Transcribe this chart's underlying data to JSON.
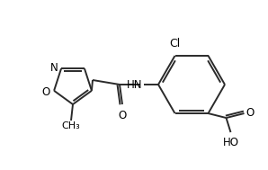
{
  "bg_color": "#ffffff",
  "bond_color": "#2a2a2a",
  "text_color": "#000000",
  "line_width": 1.4,
  "font_size": 8.5,
  "fig_width": 2.98,
  "fig_height": 1.89,
  "dpi": 100,
  "xlim": [
    0,
    298
  ],
  "ylim": [
    0,
    189
  ]
}
